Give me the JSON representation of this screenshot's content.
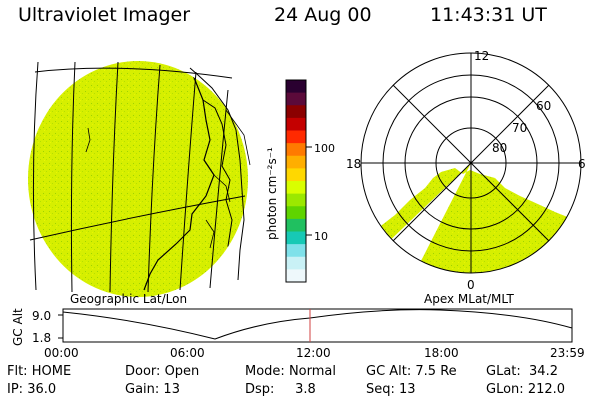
{
  "header": {
    "instrument": "Ultraviolet Imager",
    "date": "24 Aug 00",
    "time": "11:43:31 UT"
  },
  "colorbar": {
    "unit_label": "photon cm⁻²s⁻¹",
    "ticks": [
      "100",
      "10"
    ],
    "colors": [
      "#2a0030",
      "#5b0a3a",
      "#8b0000",
      "#c40000",
      "#ff2a00",
      "#ff7a00",
      "#ffae00",
      "#ffd800",
      "#d9ff00",
      "#9be800",
      "#5fd400",
      "#20c060",
      "#17c9b5",
      "#7fe1ea",
      "#c9f1f6",
      "#eef8fb"
    ]
  },
  "left_panel": {
    "caption": "Geographic Lat/Lon",
    "fill_color": "#d8f000"
  },
  "right_panel": {
    "caption": "Apex MLat/MLT",
    "mlt_labels": {
      "top": "12",
      "left": "18",
      "right": "6",
      "bottom": "0"
    },
    "mlat_labels": [
      "80",
      "70",
      "60"
    ],
    "fill_color": "#d8f000"
  },
  "altitude_plot": {
    "ylabel": "GC Alt",
    "yticks": [
      "9.0",
      "1.8"
    ],
    "xticks": [
      "00:00",
      "06:00",
      "12:00",
      "18:00",
      "23:59"
    ],
    "current_time_marker": "11:43",
    "marker_color": "#d04040"
  },
  "status": {
    "flt_label": "Flt:",
    "flt_value": "HOME",
    "door_label": "Door:",
    "door_value": "Open",
    "mode_label": "Mode:",
    "mode_value": "Normal",
    "gcalt_label": "GC Alt:",
    "gcalt_value": "7.5 Re",
    "glat_label": "GLat:",
    "glat_value": "34.2",
    "ip_label": "IP:",
    "ip_value": "36.0",
    "gain_label": "Gain:",
    "gain_value": "13",
    "dsp_label": "Dsp:",
    "dsp_value": "3.8",
    "seq_label": "Seq:",
    "seq_value": "13",
    "glon_label": "GLon:",
    "glon_value": "212.0"
  }
}
